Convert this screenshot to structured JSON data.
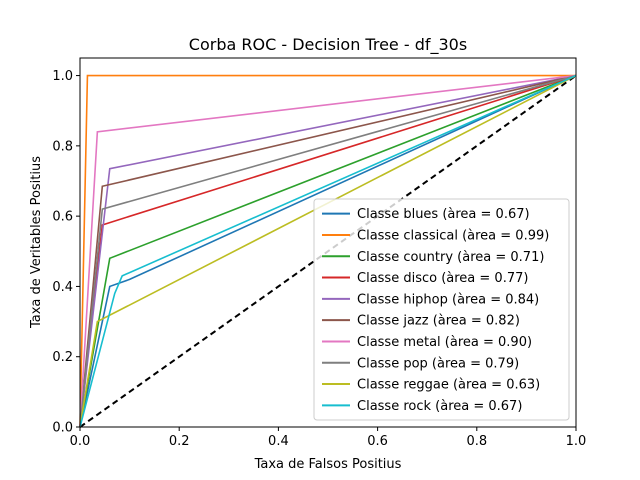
{
  "chart_data": {
    "type": "line",
    "title": "Corba ROC - Decision Tree - df_30s",
    "xlabel": "Taxa de Falsos Positius",
    "ylabel": "Taxa de Veritables Positius",
    "xlim": [
      0,
      1
    ],
    "ylim": [
      0,
      1.05
    ],
    "x_ticks": [
      "0.0",
      "0.2",
      "0.4",
      "0.6",
      "0.8",
      "1.0"
    ],
    "y_ticks": [
      "0.0",
      "0.2",
      "0.4",
      "0.6",
      "0.8",
      "1.0"
    ],
    "grid": false,
    "legend_position": "lower-right",
    "diagonal": {
      "style": "dashed",
      "color": "#000000"
    },
    "series": [
      {
        "name": "Classe blues (àrea = 0.67)",
        "color": "#1f77b4",
        "points": [
          [
            0,
            0
          ],
          [
            0.06,
            0.4
          ],
          [
            0.1,
            0.42
          ],
          [
            1,
            1
          ]
        ]
      },
      {
        "name": "Classe classical (àrea = 0.99)",
        "color": "#ff7f0e",
        "points": [
          [
            0,
            0
          ],
          [
            0.015,
            1.0
          ],
          [
            1,
            1
          ]
        ]
      },
      {
        "name": "Classe country (àrea = 0.71)",
        "color": "#2ca02c",
        "points": [
          [
            0,
            0
          ],
          [
            0.06,
            0.48
          ],
          [
            1,
            1
          ]
        ]
      },
      {
        "name": "Classe disco (àrea = 0.77)",
        "color": "#d62728",
        "points": [
          [
            0,
            0
          ],
          [
            0.045,
            0.575
          ],
          [
            1,
            1
          ]
        ]
      },
      {
        "name": "Classe hiphop (àrea = 0.84)",
        "color": "#9467bd",
        "points": [
          [
            0,
            0
          ],
          [
            0.06,
            0.735
          ],
          [
            1,
            1
          ]
        ]
      },
      {
        "name": "Classe jazz (àrea = 0.82)",
        "color": "#8c564b",
        "points": [
          [
            0,
            0
          ],
          [
            0.045,
            0.685
          ],
          [
            1,
            1
          ]
        ]
      },
      {
        "name": "Classe metal (àrea = 0.90)",
        "color": "#e377c2",
        "points": [
          [
            0,
            0
          ],
          [
            0.035,
            0.84
          ],
          [
            1,
            1
          ]
        ]
      },
      {
        "name": "Classe pop (àrea = 0.79)",
        "color": "#7f7f7f",
        "points": [
          [
            0,
            0
          ],
          [
            0.045,
            0.62
          ],
          [
            1,
            1
          ]
        ]
      },
      {
        "name": "Classe reggae (àrea = 0.63)",
        "color": "#bcbd22",
        "points": [
          [
            0,
            0
          ],
          [
            0.035,
            0.3
          ],
          [
            1,
            1
          ]
        ]
      },
      {
        "name": "Classe rock (àrea = 0.67)",
        "color": "#17becf",
        "points": [
          [
            0,
            0
          ],
          [
            0.07,
            0.38
          ],
          [
            0.085,
            0.43
          ],
          [
            1,
            1
          ]
        ]
      }
    ]
  }
}
